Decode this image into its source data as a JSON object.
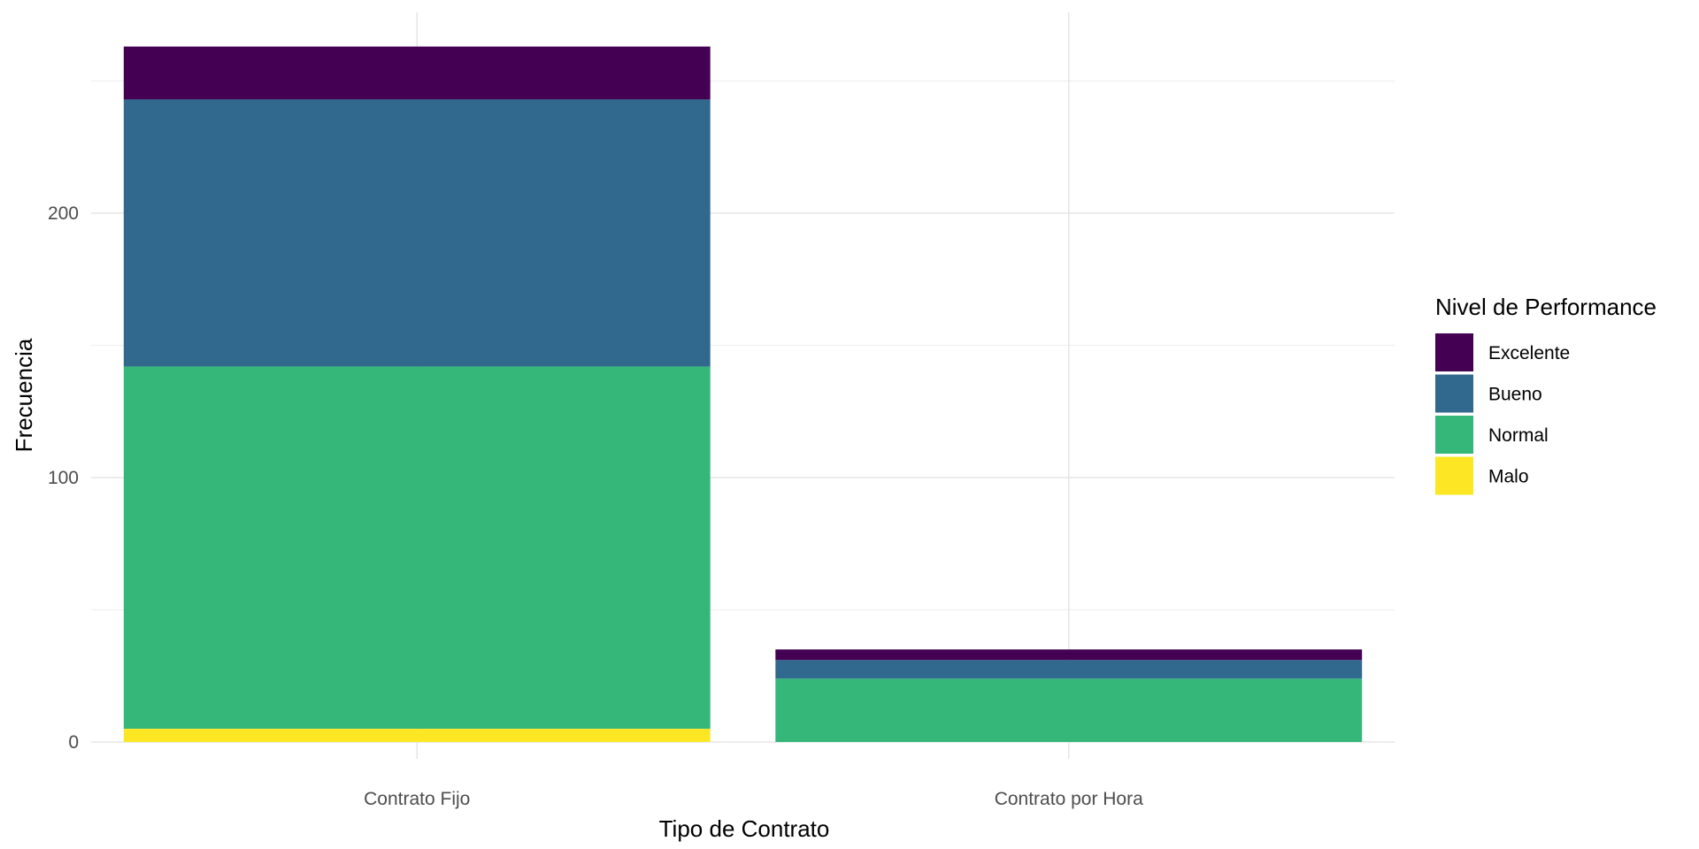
{
  "chart_data": {
    "type": "bar",
    "stacked": true,
    "title": "",
    "xlabel": "Tipo de Contrato",
    "ylabel": "Frecuencia",
    "categories": [
      "Contrato Fijo",
      "Contrato por Hora"
    ],
    "series": [
      {
        "name": "Excelente",
        "color": "#440154",
        "values": [
          20,
          4
        ]
      },
      {
        "name": "Bueno",
        "color": "#31688E",
        "values": [
          101,
          7
        ]
      },
      {
        "name": "Normal",
        "color": "#35B779",
        "values": [
          137,
          24
        ]
      },
      {
        "name": "Malo",
        "color": "#FDE725",
        "values": [
          5,
          0
        ]
      }
    ],
    "stack_order_bottom_to_top": [
      "Malo",
      "Normal",
      "Bueno",
      "Excelente"
    ],
    "ylim": [
      0,
      275
    ],
    "yticks": [
      0,
      100,
      200
    ],
    "grid": true,
    "legend": {
      "title": "Nivel de Performance",
      "placement": "right"
    }
  }
}
